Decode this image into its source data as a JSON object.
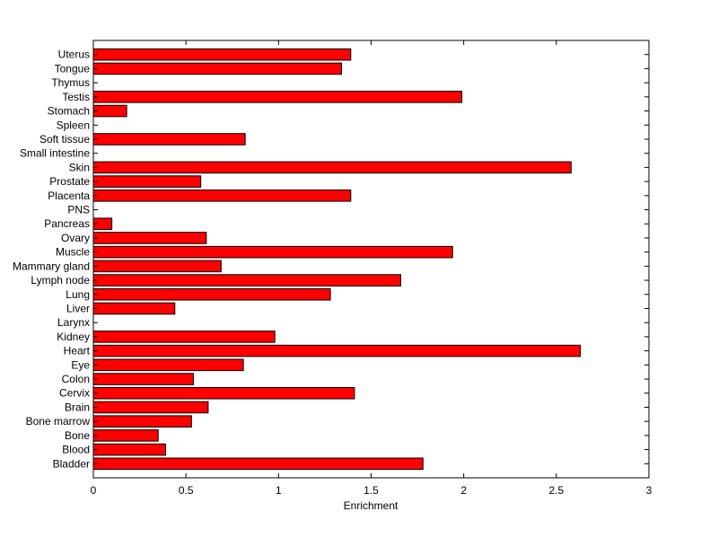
{
  "chart_data": {
    "type": "bar",
    "orientation": "horizontal",
    "title": "",
    "xlabel": "Enrichment",
    "ylabel": "",
    "xlim": [
      0,
      3
    ],
    "xticks": [
      0,
      0.5,
      1,
      1.5,
      2,
      2.5,
      3
    ],
    "xtick_labels": [
      "0",
      "0.5",
      "1",
      "1.5",
      "2",
      "2.5",
      "3"
    ],
    "grid": false,
    "legend": "none",
    "bar_color": "#ff0000",
    "bar_edge_color": "#000000",
    "categories": [
      "Bladder",
      "Blood",
      "Bone",
      "Bone marrow",
      "Brain",
      "Cervix",
      "Colon",
      "Eye",
      "Heart",
      "Kidney",
      "Larynx",
      "Liver",
      "Lung",
      "Lymph node",
      "Mammary gland",
      "Muscle",
      "Ovary",
      "Pancreas",
      "PNS",
      "Placenta",
      "Prostate",
      "Skin",
      "Small intestine",
      "Soft tissue",
      "Spleen",
      "Stomach",
      "Testis",
      "Thymus",
      "Tongue",
      "Uterus"
    ],
    "values": [
      1.78,
      0.39,
      0.35,
      0.53,
      0.62,
      1.41,
      0.54,
      0.81,
      2.63,
      0.98,
      0,
      0.44,
      1.28,
      1.66,
      0.69,
      1.94,
      0.61,
      0.1,
      0,
      1.39,
      0.58,
      2.58,
      0,
      0.82,
      0,
      0.18,
      1.99,
      0,
      1.34,
      1.39
    ]
  }
}
